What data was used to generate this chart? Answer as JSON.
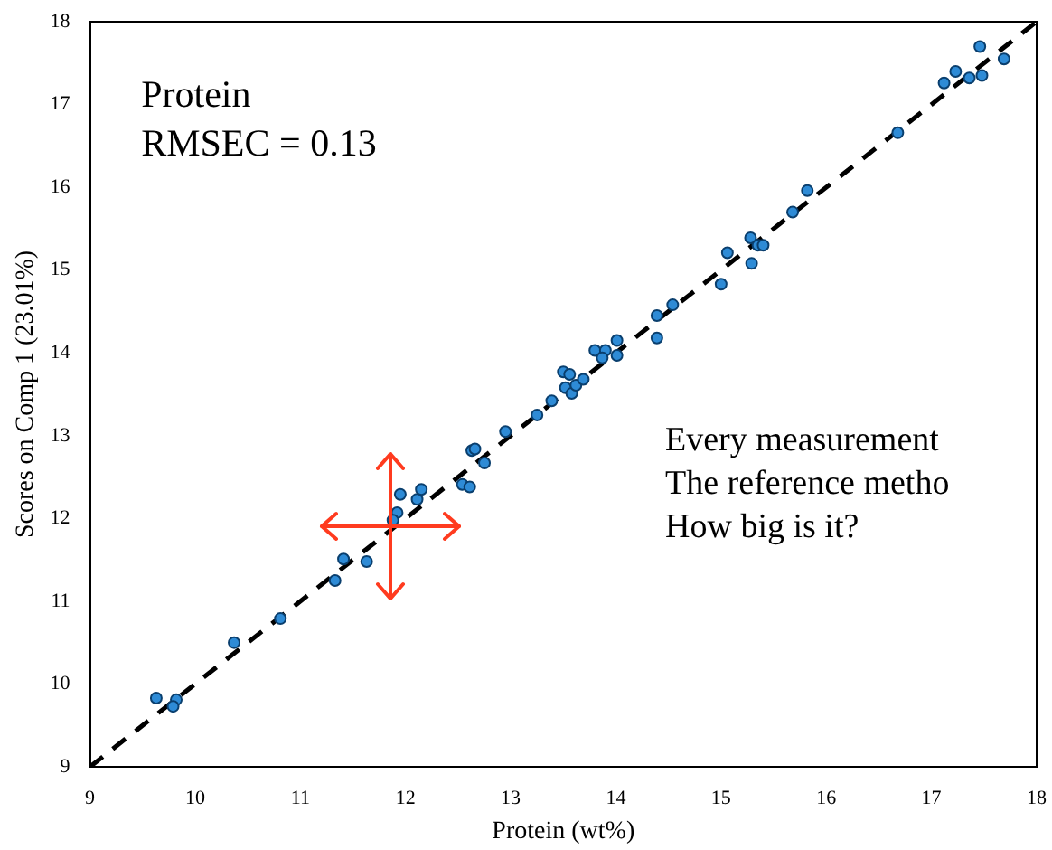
{
  "chart_data": {
    "type": "scatter",
    "xlabel": "Protein (wt%)",
    "ylabel": "Scores on Comp 1 (23.01%)",
    "xlim": [
      9,
      18
    ],
    "ylim": [
      9,
      18
    ],
    "xticks": [
      9,
      10,
      11,
      12,
      13,
      14,
      15,
      16,
      17,
      18
    ],
    "yticks": [
      9,
      10,
      11,
      12,
      13,
      14,
      15,
      16,
      17,
      18
    ],
    "grid": false,
    "marker": "circle",
    "annotations": [
      "Protein",
      "RMSEC = 0.13",
      "Every measurement",
      "The reference metho",
      "How big is it?"
    ],
    "series": [
      {
        "color": "#2e8bd6",
        "x": [
          9.63,
          9.82,
          9.79,
          10.37,
          10.81,
          11.33,
          11.41,
          11.63,
          11.92,
          11.88,
          11.95,
          12.11,
          12.15,
          12.54,
          12.61,
          12.63,
          12.66,
          12.75,
          12.95,
          13.25,
          13.39,
          13.5,
          13.56,
          13.52,
          13.58,
          13.62,
          13.69,
          13.8,
          13.9,
          13.87,
          14.01,
          14.01,
          14.39,
          14.39,
          14.54,
          15.0,
          15.06,
          15.29,
          15.28,
          15.35,
          15.4,
          15.68,
          15.82,
          16.68,
          17.12,
          17.23,
          17.36,
          17.48,
          17.46,
          17.69
        ],
        "values": [
          9.83,
          9.81,
          9.73,
          10.5,
          10.79,
          11.25,
          11.51,
          11.48,
          12.07,
          11.98,
          12.29,
          12.23,
          12.35,
          12.41,
          12.38,
          12.82,
          12.84,
          12.67,
          13.05,
          13.25,
          13.42,
          13.77,
          13.74,
          13.58,
          13.51,
          13.61,
          13.68,
          14.03,
          14.03,
          13.94,
          14.15,
          13.97,
          14.45,
          14.18,
          14.58,
          14.83,
          15.21,
          15.08,
          15.39,
          15.3,
          15.3,
          15.7,
          15.96,
          16.66,
          17.26,
          17.4,
          17.32,
          17.35,
          17.7,
          17.55
        ]
      },
      {
        "type": "line",
        "color": "#000000",
        "line_style": "dashed",
        "marker": "none",
        "x": [
          9,
          18
        ],
        "values": [
          9,
          18
        ]
      }
    ]
  }
}
